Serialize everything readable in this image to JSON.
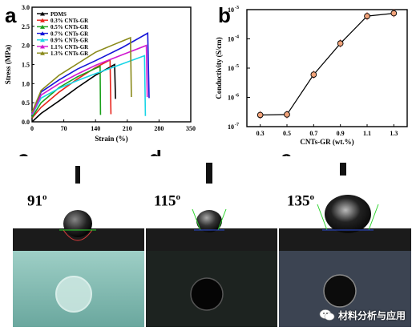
{
  "panels": {
    "a": "a",
    "b": "b",
    "c": "c",
    "d": "d",
    "e": "e"
  },
  "angles": {
    "c": {
      "value": "91",
      "unit": "o"
    },
    "d": {
      "value": "115",
      "unit": "o"
    },
    "e": {
      "value": "135",
      "unit": "o"
    }
  },
  "watermark": "材料分析与应用",
  "chart_data": [
    {
      "type": "line",
      "panel": "a",
      "xlabel": "Strain (%)",
      "ylabel": "Stress (MPa)",
      "xlim": [
        0,
        350
      ],
      "ylim": [
        0,
        3.0
      ],
      "xticks": [
        0,
        70,
        140,
        210,
        280,
        350
      ],
      "yticks": [
        0.0,
        0.5,
        1.0,
        1.5,
        2.0,
        2.5,
        3.0
      ],
      "legend_position": "top-left",
      "series": [
        {
          "name": "PDMS",
          "color": "#000000",
          "x": [
            0,
            20,
            60,
            100,
            140,
            182,
            184
          ],
          "y": [
            0,
            0.22,
            0.55,
            0.9,
            1.22,
            1.5,
            0.6
          ]
        },
        {
          "name": "0.3% CNTs-GR",
          "color": "#e8241c",
          "x": [
            0,
            20,
            60,
            100,
            140,
            172,
            174
          ],
          "y": [
            0.1,
            0.38,
            0.78,
            1.12,
            1.42,
            1.62,
            0.2
          ]
        },
        {
          "name": "0.5% CNTs-GR",
          "color": "#1aa01a",
          "x": [
            0,
            20,
            60,
            100,
            140,
            150,
            151
          ],
          "y": [
            0.12,
            0.5,
            0.9,
            1.18,
            1.4,
            1.45,
            0.18
          ]
        },
        {
          "name": "0.7% CNTs-GR",
          "color": "#1515d8",
          "x": [
            0,
            20,
            60,
            100,
            140,
            200,
            255,
            258
          ],
          "y": [
            0.22,
            0.78,
            1.1,
            1.38,
            1.6,
            1.95,
            2.32,
            0.62
          ]
        },
        {
          "name": "0.9% CNTs-GR",
          "color": "#19d5e6",
          "x": [
            0,
            20,
            60,
            100,
            140,
            200,
            248,
            250
          ],
          "y": [
            0.18,
            0.62,
            0.88,
            1.08,
            1.26,
            1.52,
            1.73,
            0.15
          ]
        },
        {
          "name": "1.1% CNTs-GR",
          "color": "#d019d0",
          "x": [
            0,
            20,
            60,
            100,
            140,
            200,
            252,
            254
          ],
          "y": [
            0.2,
            0.7,
            1.0,
            1.25,
            1.48,
            1.76,
            2.0,
            0.65
          ]
        },
        {
          "name": "1.3% CNTs-GR",
          "color": "#8a8a1a",
          "x": [
            0,
            20,
            60,
            100,
            140,
            180,
            217,
            219
          ],
          "y": [
            0.25,
            0.82,
            1.22,
            1.52,
            1.82,
            2.02,
            2.2,
            0.65
          ]
        }
      ]
    },
    {
      "type": "line",
      "panel": "b",
      "xlabel": "CNTs-GR (wt.%)",
      "ylabel": "Conductivity (S/cm)",
      "yscale": "log",
      "xlim": [
        0.2,
        1.4
      ],
      "ylim": [
        1e-07,
        0.001
      ],
      "xticks": [
        "0.3",
        "0.5",
        "0.7",
        "0.9",
        "1.1",
        "1.3"
      ],
      "yticks": [
        "10-7",
        "10-6",
        "10-5",
        "10-4",
        "10-3"
      ],
      "series": [
        {
          "name": "",
          "color": "#000000",
          "marker_color": "#f2a37a",
          "x": [
            0.3,
            0.5,
            0.7,
            0.9,
            1.1,
            1.3
          ],
          "y": [
            2.5e-07,
            2.6e-07,
            6e-06,
            7e-05,
            0.0006,
            0.00075
          ]
        }
      ]
    }
  ]
}
